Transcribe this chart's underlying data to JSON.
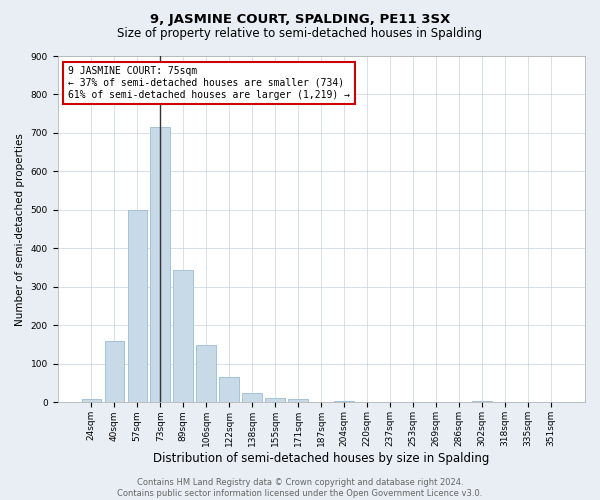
{
  "title": "9, JASMINE COURT, SPALDING, PE11 3SX",
  "subtitle": "Size of property relative to semi-detached houses in Spalding",
  "xlabel": "Distribution of semi-detached houses by size in Spalding",
  "ylabel": "Number of semi-detached properties",
  "categories": [
    "24sqm",
    "40sqm",
    "57sqm",
    "73sqm",
    "89sqm",
    "106sqm",
    "122sqm",
    "138sqm",
    "155sqm",
    "171sqm",
    "187sqm",
    "204sqm",
    "220sqm",
    "237sqm",
    "253sqm",
    "269sqm",
    "286sqm",
    "302sqm",
    "318sqm",
    "335sqm",
    "351sqm"
  ],
  "values": [
    8,
    160,
    500,
    715,
    345,
    148,
    65,
    25,
    12,
    10,
    0,
    5,
    0,
    0,
    0,
    0,
    0,
    5,
    0,
    0,
    0
  ],
  "bar_color": "#c8d9e8",
  "bar_edge_color": "#9bbdd4",
  "highlight_index": 3,
  "highlight_line_color": "#333333",
  "annotation_text": "9 JASMINE COURT: 75sqm\n← 37% of semi-detached houses are smaller (734)\n61% of semi-detached houses are larger (1,219) →",
  "annotation_box_color": "#ffffff",
  "annotation_box_edge_color": "#cc0000",
  "ylim": [
    0,
    900
  ],
  "yticks": [
    0,
    100,
    200,
    300,
    400,
    500,
    600,
    700,
    800,
    900
  ],
  "background_color": "#e8eef4",
  "plot_bg_color": "#ffffff",
  "grid_color": "#c8d4de",
  "footer_text": "Contains HM Land Registry data © Crown copyright and database right 2024.\nContains public sector information licensed under the Open Government Licence v3.0.",
  "title_fontsize": 9.5,
  "subtitle_fontsize": 8.5,
  "xlabel_fontsize": 8.5,
  "ylabel_fontsize": 7.5,
  "tick_fontsize": 6.5,
  "annotation_fontsize": 7,
  "footer_fontsize": 6
}
